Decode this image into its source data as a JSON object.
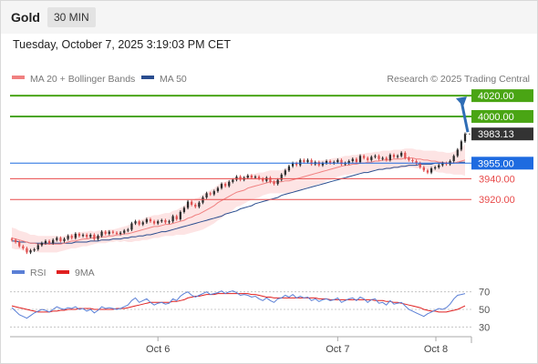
{
  "header": {
    "title": "Gold",
    "timeframe": "30 MIN",
    "datetime": "Tuesday, October 7, 2025 3:19:03 PM CET"
  },
  "legend": {
    "ma20": "MA 20 + Bollinger Bands",
    "ma50": "MA 50",
    "credit": "Research © 2025 Trading Central",
    "rsi": "RSI",
    "rsi_ma": "9MA"
  },
  "colors": {
    "up": "#2c2c2c",
    "down": "#e05050",
    "ma20": "#f08080",
    "ma50": "#2a4d8f",
    "bollinger_fill": "#fde4e4",
    "target_green": "#4aa514",
    "pivot_blue": "#1e6be0",
    "support_red": "#e84a4a",
    "rsi_line": "#5a7fd6",
    "rsi_ma": "#e02020",
    "arrow": "#2f6db5"
  },
  "chart_data": [
    {
      "type": "candlestick",
      "title": "Gold",
      "timeframe": "30 MIN",
      "x_ticks": [
        "Oct 6",
        "Oct 7",
        "Oct 8"
      ],
      "ylim": [
        3865,
        4028
      ],
      "levels": [
        {
          "label": "4020.00",
          "value": 4020.0,
          "kind": "target"
        },
        {
          "label": "4000.00",
          "value": 4000.0,
          "kind": "target"
        },
        {
          "label": "3983.13",
          "value": 3983.13,
          "kind": "last_price"
        },
        {
          "label": "3955.00",
          "value": 3955.0,
          "kind": "pivot"
        },
        {
          "label": "3940.00",
          "value": 3940.0,
          "kind": "support"
        },
        {
          "label": "3920.00",
          "value": 3920.0,
          "kind": "support"
        }
      ],
      "close": [
        3881,
        3879,
        3875,
        3873,
        3869,
        3871,
        3872,
        3876,
        3878,
        3880,
        3878,
        3881,
        3883,
        3880,
        3882,
        3885,
        3883,
        3887,
        3885,
        3886,
        3884,
        3886,
        3882,
        3885,
        3889,
        3887,
        3889,
        3888,
        3887,
        3888,
        3890,
        3891,
        3897,
        3899,
        3896,
        3898,
        3901,
        3899,
        3897,
        3899,
        3900,
        3898,
        3899,
        3904,
        3901,
        3908,
        3912,
        3918,
        3915,
        3913,
        3917,
        3922,
        3926,
        3925,
        3928,
        3931,
        3935,
        3933,
        3937,
        3939,
        3942,
        3939,
        3941,
        3943,
        3941,
        3942,
        3940,
        3938,
        3941,
        3937,
        3935,
        3939,
        3944,
        3948,
        3952,
        3955,
        3953,
        3958,
        3956,
        3958,
        3954,
        3956,
        3953,
        3955,
        3957,
        3955,
        3956,
        3958,
        3954,
        3955,
        3957,
        3959,
        3956,
        3962,
        3960,
        3958,
        3961,
        3962,
        3959,
        3960,
        3958,
        3963,
        3961,
        3962,
        3965,
        3960,
        3958,
        3957,
        3955,
        3951,
        3948,
        3946,
        3950,
        3951,
        3953,
        3955,
        3954,
        3957,
        3962,
        3968,
        3976,
        3983.13
      ],
      "ma20": [
        3883,
        3882,
        3881,
        3880,
        3879,
        3878,
        3878,
        3877,
        3877,
        3877,
        3877,
        3877,
        3877,
        3877,
        3878,
        3879,
        3880,
        3880,
        3881,
        3882,
        3882,
        3883,
        3883,
        3884,
        3884,
        3884,
        3885,
        3885,
        3886,
        3886,
        3887,
        3887,
        3888,
        3889,
        3890,
        3891,
        3892,
        3893,
        3894,
        3894,
        3895,
        3896,
        3896,
        3897,
        3898,
        3899,
        3900,
        3902,
        3903,
        3905,
        3906,
        3908,
        3910,
        3912,
        3914,
        3917,
        3919,
        3921,
        3923,
        3925,
        3927,
        3928,
        3929,
        3931,
        3932,
        3933,
        3934,
        3935,
        3936,
        3937,
        3937,
        3937,
        3937,
        3938,
        3938,
        3939,
        3940,
        3941,
        3942,
        3943,
        3944,
        3945,
        3946,
        3947,
        3948,
        3949,
        3950,
        3951,
        3952,
        3953,
        3953,
        3954,
        3954,
        3955,
        3955,
        3956,
        3956,
        3957,
        3957,
        3958,
        3958,
        3958,
        3959,
        3959,
        3959,
        3960,
        3960,
        3960,
        3959,
        3959,
        3958,
        3958,
        3957,
        3957,
        3956,
        3956,
        3955,
        3955,
        3955,
        3956,
        3957,
        3958
      ],
      "ma50": [
        3880,
        3880,
        3879,
        3879,
        3879,
        3878,
        3878,
        3878,
        3878,
        3878,
        3878,
        3878,
        3878,
        3878,
        3878,
        3878,
        3878,
        3879,
        3879,
        3879,
        3879,
        3880,
        3880,
        3880,
        3881,
        3881,
        3881,
        3882,
        3882,
        3882,
        3883,
        3883,
        3884,
        3884,
        3885,
        3885,
        3886,
        3886,
        3887,
        3888,
        3889,
        3889,
        3890,
        3891,
        3892,
        3893,
        3894,
        3895,
        3896,
        3897,
        3898,
        3899,
        3900,
        3901,
        3902,
        3903,
        3904,
        3906,
        3907,
        3908,
        3909,
        3911,
        3912,
        3913,
        3914,
        3916,
        3917,
        3918,
        3919,
        3920,
        3921,
        3922,
        3924,
        3925,
        3926,
        3927,
        3928,
        3929,
        3930,
        3931,
        3932,
        3933,
        3934,
        3935,
        3936,
        3937,
        3938,
        3939,
        3940,
        3941,
        3942,
        3943,
        3944,
        3945,
        3946,
        3946,
        3947,
        3948,
        3949,
        3949,
        3950,
        3950,
        3951,
        3951,
        3952,
        3952,
        3953,
        3953,
        3953,
        3954,
        3954,
        3954,
        3954,
        3955,
        3955,
        3955,
        3955,
        3955,
        3955,
        3956,
        3956,
        3956
      ],
      "band_width": [
        10,
        10,
        9,
        9,
        9,
        8,
        8,
        8,
        8,
        8,
        8,
        8,
        8,
        7,
        7,
        7,
        7,
        7,
        7,
        7,
        7,
        7,
        6,
        6,
        6,
        6,
        6,
        6,
        6,
        7,
        7,
        8,
        9,
        9,
        10,
        10,
        11,
        11,
        11,
        11,
        11,
        11,
        11,
        12,
        12,
        13,
        14,
        15,
        15,
        16,
        16,
        17,
        17,
        17,
        17,
        17,
        17,
        16,
        16,
        15,
        14,
        14,
        13,
        13,
        12,
        12,
        12,
        11,
        11,
        11,
        11,
        11,
        11,
        12,
        12,
        12,
        12,
        12,
        12,
        12,
        11,
        11,
        11,
        11,
        10,
        10,
        10,
        9,
        9,
        9,
        9,
        9,
        9,
        9,
        9,
        9,
        9,
        9,
        9,
        9,
        9,
        9,
        9,
        9,
        9,
        9,
        9,
        9,
        9,
        9,
        9,
        9,
        10,
        10,
        10,
        10,
        10,
        10,
        11,
        12,
        13,
        15
      ]
    },
    {
      "type": "line",
      "title": "RSI",
      "x_ticks": [
        "Oct 6",
        "Oct 7",
        "Oct 8"
      ],
      "y_ticks": [
        70,
        50,
        30
      ],
      "ylim": [
        20,
        80
      ],
      "series": [
        {
          "name": "RSI",
          "values": [
            52,
            48,
            44,
            42,
            40,
            43,
            46,
            48,
            50,
            49,
            47,
            50,
            53,
            51,
            50,
            52,
            51,
            53,
            50,
            51,
            48,
            50,
            46,
            49,
            53,
            51,
            52,
            51,
            50,
            51,
            53,
            55,
            60,
            63,
            58,
            60,
            62,
            58,
            55,
            57,
            58,
            56,
            57,
            62,
            60,
            65,
            68,
            70,
            66,
            64,
            66,
            68,
            70,
            67,
            68,
            69,
            71,
            68,
            70,
            71,
            69,
            66,
            67,
            66,
            64,
            65,
            62,
            60,
            63,
            60,
            58,
            62,
            63,
            66,
            64,
            67,
            63,
            65,
            63,
            64,
            60,
            62,
            59,
            61,
            62,
            60,
            61,
            63,
            58,
            60,
            62,
            63,
            60,
            64,
            62,
            58,
            61,
            62,
            57,
            58,
            55,
            60,
            56,
            57,
            58,
            54,
            50,
            48,
            46,
            44,
            42,
            45,
            47,
            49,
            51,
            50,
            52,
            56,
            62,
            66,
            67,
            68
          ]
        },
        {
          "name": "9MA",
          "values": [
            54,
            53,
            52,
            51,
            50,
            49,
            48,
            47,
            47,
            47,
            47,
            48,
            48,
            49,
            49,
            50,
            50,
            50,
            51,
            51,
            51,
            51,
            50,
            50,
            50,
            50,
            50,
            50,
            51,
            51,
            51,
            52,
            53,
            54,
            55,
            56,
            57,
            58,
            58,
            58,
            58,
            58,
            58,
            59,
            59,
            60,
            61,
            63,
            64,
            65,
            65,
            66,
            67,
            67,
            67,
            68,
            68,
            68,
            68,
            68,
            68,
            68,
            68,
            68,
            67,
            67,
            66,
            65,
            64,
            64,
            63,
            63,
            63,
            63,
            63,
            63,
            63,
            63,
            63,
            63,
            63,
            63,
            62,
            62,
            62,
            61,
            61,
            61,
            61,
            61,
            61,
            61,
            61,
            61,
            61,
            61,
            61,
            60,
            60,
            60,
            59,
            59,
            58,
            58,
            57,
            56,
            55,
            54,
            53,
            52,
            50,
            49,
            48,
            48,
            47,
            47,
            47,
            48,
            49,
            50,
            52,
            54
          ]
        }
      ]
    }
  ]
}
